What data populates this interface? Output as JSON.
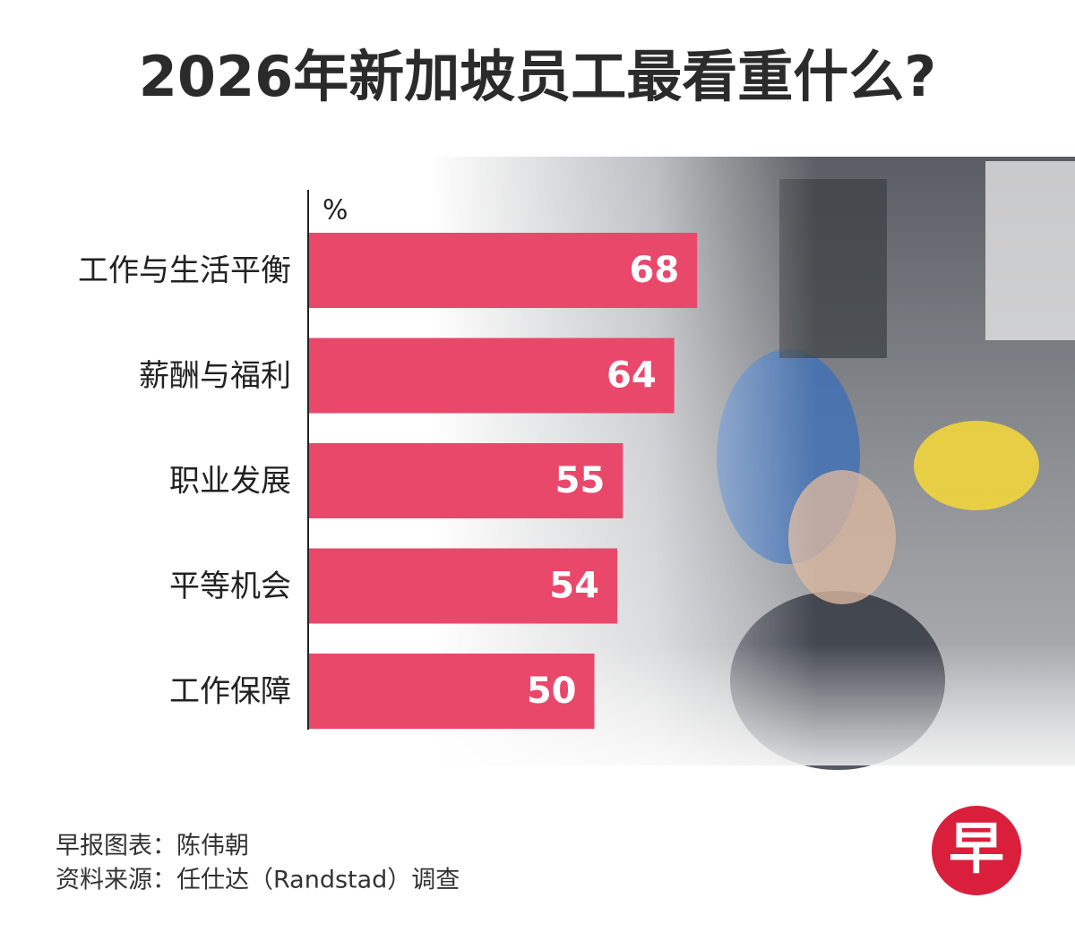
{
  "chart_data": {
    "type": "bar",
    "orientation": "horizontal",
    "title": "2026年新加坡员工最看重什么?",
    "unit_label": "%",
    "categories": [
      "工作与生活平衡",
      "薪酬与福利",
      "职业发展",
      "平等机会",
      "工作保障"
    ],
    "values": [
      68,
      64,
      55,
      54,
      50
    ],
    "color": "#e9486b",
    "xlim": [
      0,
      100
    ]
  },
  "credits": [
    "早报图表：陈伟朝",
    "资料来源：任仕达（Randstad）调查"
  ],
  "logo": "早"
}
